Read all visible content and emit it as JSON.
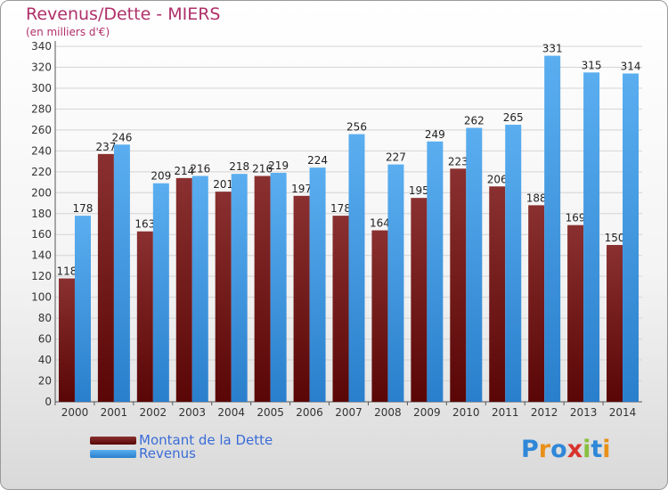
{
  "header": {
    "title": "Revenus/Dette - MIERS",
    "subtitle": "(en milliers d'€)"
  },
  "logo": {
    "text": "Proxiti",
    "letter_colors": [
      "#2f87d8",
      "#e8901a",
      "#2f87d8",
      "#d8332c",
      "#88c040",
      "#2f87d8",
      "#e8901a"
    ]
  },
  "colors": {
    "dette_top": "#8a3030",
    "dette_bottom": "#5a0606",
    "revenus_top": "#5aaef0",
    "revenus_bottom": "#2a7fcc",
    "axis_text": "#333333",
    "label_text": "#222222",
    "gridline": "#d4d4d4"
  },
  "chart_data": {
    "type": "bar",
    "title": "Revenus/Dette - MIERS",
    "subtitle": "(en milliers d'€)",
    "categories": [
      "2000",
      "2001",
      "2002",
      "2003",
      "2004",
      "2005",
      "2006",
      "2007",
      "2008",
      "2009",
      "2010",
      "2011",
      "2012",
      "2013",
      "2014"
    ],
    "series": [
      {
        "name": "Montant de la Dette",
        "values": [
          118,
          237,
          163,
          214,
          201,
          216,
          197,
          178,
          164,
          195,
          223,
          206,
          188,
          169,
          150
        ]
      },
      {
        "name": "Revenus",
        "values": [
          178,
          246,
          209,
          216,
          218,
          219,
          224,
          256,
          227,
          249,
          262,
          265,
          331,
          315,
          314
        ]
      }
    ],
    "ylim": [
      0,
      340
    ],
    "yticks": [
      0,
      20,
      40,
      60,
      80,
      100,
      120,
      140,
      160,
      180,
      200,
      220,
      240,
      260,
      280,
      300,
      320,
      340
    ],
    "grid": true,
    "legend_position": "bottom-left"
  }
}
